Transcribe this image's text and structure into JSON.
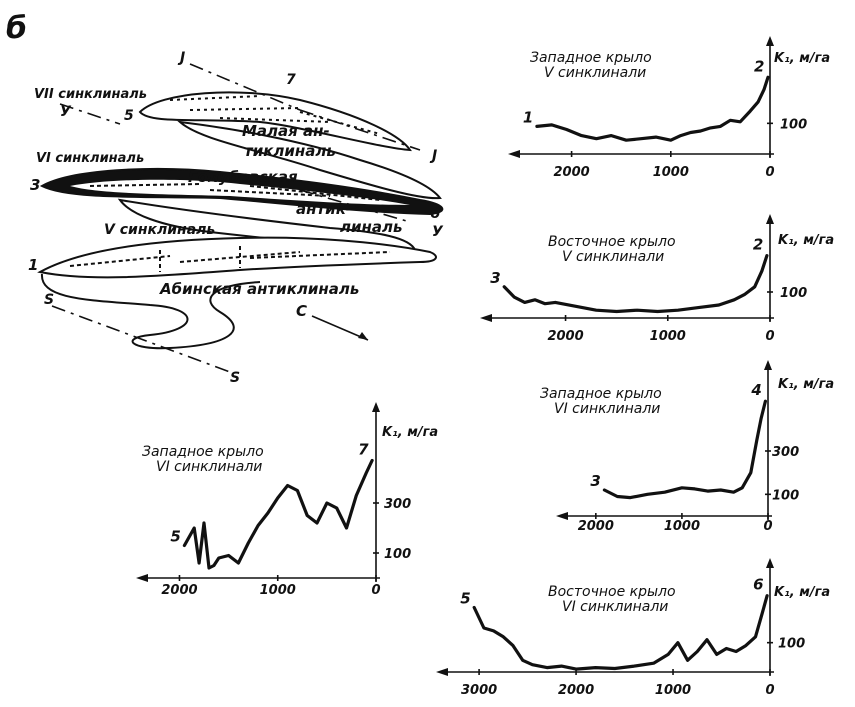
{
  "figure": {
    "letter": "б"
  },
  "map": {
    "labels": {
      "syncline_7": "VII синклиналь",
      "malaya": "Малая ан-\nтиклиналь",
      "syncline_6": "VI синклиналь",
      "golubevskaya": "Голубевская",
      "antikli": "антик-\nлиналь",
      "syncline_5": "V синклиналь",
      "abinskaya": "Абинская антиклиналь",
      "dir": "С",
      "J_top": "J",
      "J_right": "J",
      "U_left": "У",
      "U_right": "У",
      "S_left": "S",
      "S_bottom": "S",
      "n1": "1",
      "n3": "3",
      "n5": "5",
      "n6": "6",
      "n7": "7"
    }
  },
  "chart_data": [
    {
      "type": "line",
      "title": "Западное крыло\nV синклинали",
      "ylabel": "K₁, м/га",
      "x_ticks": [
        "2000",
        "1000",
        "0"
      ],
      "y_ticks": [
        "100"
      ],
      "xlim": [
        2500,
        0
      ],
      "ylim": [
        0,
        300
      ],
      "start_label": "1",
      "end_label": "2",
      "x": [
        2350,
        2200,
        2050,
        1900,
        1750,
        1600,
        1450,
        1300,
        1150,
        1000,
        900,
        800,
        700,
        600,
        500,
        400,
        300,
        200,
        120,
        60,
        20
      ],
      "y": [
        90,
        95,
        80,
        60,
        50,
        60,
        45,
        50,
        55,
        45,
        60,
        70,
        75,
        85,
        90,
        110,
        105,
        140,
        170,
        210,
        250
      ]
    },
    {
      "type": "line",
      "title": "Восточное крыло\nV синклинали",
      "ylabel": "K₁, м/га",
      "x_ticks": [
        "2000",
        "1000",
        "0"
      ],
      "y_ticks": [
        "100"
      ],
      "xlim": [
        2700,
        0
      ],
      "ylim": [
        0,
        300
      ],
      "start_label": "3",
      "end_label": "2",
      "x": [
        2600,
        2500,
        2400,
        2300,
        2200,
        2100,
        1900,
        1700,
        1500,
        1300,
        1100,
        900,
        700,
        500,
        350,
        250,
        150,
        80,
        30
      ],
      "y": [
        120,
        80,
        60,
        70,
        55,
        60,
        45,
        30,
        25,
        30,
        25,
        30,
        40,
        50,
        70,
        90,
        120,
        180,
        240
      ]
    },
    {
      "type": "line",
      "title": "Западное крыло\nVI синклинали",
      "ylabel": "K₁, м/га",
      "x_ticks": [
        "2000",
        "1000",
        "0"
      ],
      "y_ticks": [
        "300",
        "100"
      ],
      "xlim": [
        2300,
        0
      ],
      "ylim": [
        0,
        600
      ],
      "start_label": "3",
      "end_label": "4",
      "x": [
        1900,
        1750,
        1600,
        1400,
        1200,
        1000,
        850,
        700,
        550,
        400,
        300,
        200,
        130,
        80,
        30
      ],
      "y": [
        120,
        90,
        85,
        100,
        110,
        130,
        125,
        115,
        120,
        110,
        130,
        200,
        350,
        450,
        530
      ]
    },
    {
      "type": "line",
      "title": "Западное крыло\nVI синклинали",
      "ylabel": "K₁, м/га",
      "x_ticks": [
        "2000",
        "1000",
        "0"
      ],
      "y_ticks": [
        "300",
        "100"
      ],
      "xlim": [
        2300,
        0
      ],
      "ylim": [
        0,
        600
      ],
      "start_label": "5",
      "end_label": "7",
      "x": [
        1950,
        1850,
        1800,
        1750,
        1700,
        1650,
        1600,
        1500,
        1400,
        1300,
        1200,
        1100,
        1000,
        900,
        800,
        700,
        600,
        500,
        400,
        300,
        200,
        100,
        40
      ],
      "y": [
        130,
        200,
        60,
        220,
        40,
        50,
        80,
        90,
        60,
        140,
        210,
        260,
        320,
        370,
        350,
        250,
        220,
        300,
        280,
        200,
        330,
        420,
        470
      ]
    },
    {
      "type": "line",
      "title": "Восточное крыло\nVI синклинали",
      "ylabel": "K₁, м/га",
      "x_ticks": [
        "3000",
        "2000",
        "1000",
        "0"
      ],
      "y_ticks": [
        "100"
      ],
      "xlim": [
        3300,
        0
      ],
      "ylim": [
        0,
        300
      ],
      "start_label": "5",
      "end_label": "6",
      "x": [
        3050,
        2950,
        2850,
        2750,
        2650,
        2550,
        2450,
        2300,
        2150,
        2000,
        1800,
        1600,
        1400,
        1200,
        1050,
        950,
        850,
        750,
        650,
        550,
        450,
        350,
        250,
        150,
        80,
        30
      ],
      "y": [
        220,
        150,
        140,
        120,
        90,
        40,
        25,
        15,
        20,
        10,
        15,
        12,
        20,
        30,
        60,
        100,
        40,
        70,
        110,
        60,
        80,
        70,
        90,
        120,
        200,
        260
      ]
    }
  ]
}
